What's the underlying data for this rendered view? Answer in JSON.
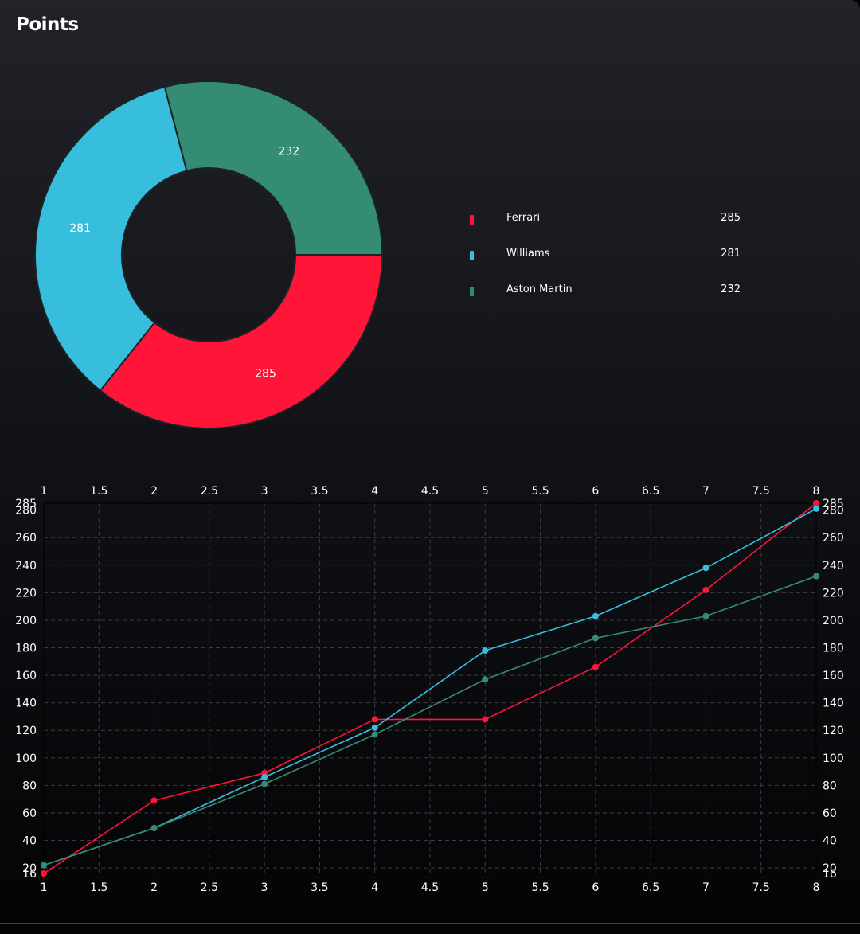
{
  "page": {
    "title": "Points"
  },
  "colors": {
    "ferrari": "#ff1538",
    "williams": "#37bedd",
    "aston_martin": "#358c75",
    "accent_line": "#b01217"
  },
  "legend": [
    {
      "name": "Ferrari",
      "value": "285",
      "color": "#ff1538"
    },
    {
      "name": "Williams",
      "value": "281",
      "color": "#37bedd"
    },
    {
      "name": "Aston Martin",
      "value": "232",
      "color": "#358c75"
    }
  ],
  "chart_data": [
    {
      "type": "pie",
      "variant": "donut",
      "labels": [
        "Ferrari",
        "Williams",
        "Aston Martin"
      ],
      "values": [
        285,
        281,
        232
      ],
      "colors": [
        "#ff1538",
        "#37bedd",
        "#358c75"
      ],
      "legend": "right"
    },
    {
      "type": "line",
      "x": [
        1,
        2,
        3,
        4,
        5,
        6,
        7,
        8
      ],
      "series": [
        {
          "name": "Ferrari",
          "color": "#ff1538",
          "values": [
            16,
            69,
            89,
            128,
            128,
            166,
            222,
            285
          ]
        },
        {
          "name": "Williams",
          "color": "#37bedd",
          "values": [
            22,
            49,
            86,
            122,
            178,
            203,
            238,
            281
          ]
        },
        {
          "name": "Aston Martin",
          "color": "#358c75",
          "values": [
            22,
            49,
            81,
            117,
            157,
            187,
            203,
            232
          ]
        }
      ],
      "xlim": [
        1,
        8
      ],
      "ylim": [
        16,
        285
      ],
      "x_ticks": [
        "1",
        "1.5",
        "2",
        "2.5",
        "3",
        "3.5",
        "4",
        "4.5",
        "5",
        "5.5",
        "6",
        "6.5",
        "7",
        "7.5",
        "8"
      ],
      "y_ticks": [
        "16",
        "20",
        "40",
        "60",
        "80",
        "100",
        "120",
        "140",
        "160",
        "180",
        "200",
        "220",
        "240",
        "260",
        "280",
        "285"
      ],
      "grid": true
    }
  ]
}
